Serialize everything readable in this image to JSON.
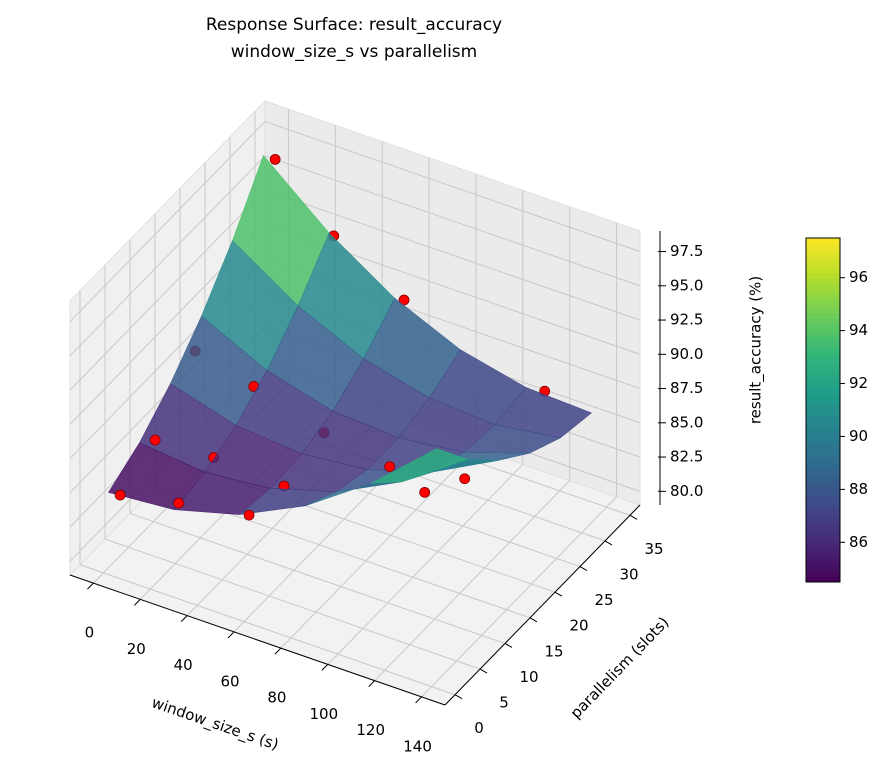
{
  "chart_data": {
    "type": "surface3d",
    "title": "Response Surface: result_accuracy",
    "subtitle": "window_size_s vs parallelism",
    "xlabel": "window_size_s (s)",
    "ylabel": "parallelism (slots)",
    "zlabel": "result_accuracy (%)",
    "xlim": [
      -10,
      150
    ],
    "ylim": [
      -2,
      37
    ],
    "zlim": [
      79,
      99
    ],
    "xticks": [
      0,
      20,
      40,
      60,
      80,
      100,
      120,
      140
    ],
    "yticks": [
      0,
      5,
      10,
      15,
      20,
      25,
      30,
      35
    ],
    "zticks": [
      {
        "value": 80,
        "label": "80.0"
      },
      {
        "value": 82.5,
        "label": "82.5"
      },
      {
        "value": 85,
        "label": "85.0"
      },
      {
        "value": 87.5,
        "label": "87.5"
      },
      {
        "value": 90,
        "label": "90.0"
      },
      {
        "value": 92.5,
        "label": "92.5"
      },
      {
        "value": 95,
        "label": "95.0"
      },
      {
        "value": 97.5,
        "label": "97.5"
      }
    ],
    "colormap": "viridis",
    "surface": {
      "x": [
        0,
        28,
        56,
        84,
        112,
        140
      ],
      "y": [
        1,
        7.2,
        13.4,
        19.6,
        25.8,
        32
      ],
      "z": [
        [
          84.5,
          84.9,
          86.2,
          88.5,
          91.8,
          96.0
        ],
        [
          85.8,
          85.3,
          85.8,
          87.2,
          89.6,
          92.9
        ],
        [
          87.8,
          86.4,
          86.0,
          86.5,
          88.0,
          90.5
        ],
        [
          90.4,
          88.1,
          86.8,
          86.5,
          87.1,
          88.7
        ],
        [
          93.6,
          90.5,
          88.3,
          87.1,
          86.8,
          87.5
        ],
        [
          97.5,
          93.5,
          90.4,
          88.3,
          87.2,
          87.0
        ]
      ]
    },
    "points": {
      "color": "#ff0000",
      "x": [
        5,
        5,
        5,
        5,
        30,
        30,
        30,
        30,
        60,
        60,
        60,
        60,
        120,
        120,
        120,
        120
      ],
      "y": [
        1,
        8,
        16,
        32,
        1,
        8,
        16,
        32,
        1,
        8,
        16,
        32,
        1,
        8,
        16,
        32
      ],
      "z": [
        84.6,
        86.0,
        89.5,
        97.5,
        85.5,
        86.2,
        88.4,
        93.4,
        86.4,
        85.9,
        86.8,
        90.5,
        93.5,
        89.0,
        87.0,
        87.4
      ]
    },
    "colorbar": {
      "lim": [
        84.5,
        97.5
      ],
      "ticks": [
        86,
        88,
        90,
        92,
        94,
        96
      ]
    }
  }
}
